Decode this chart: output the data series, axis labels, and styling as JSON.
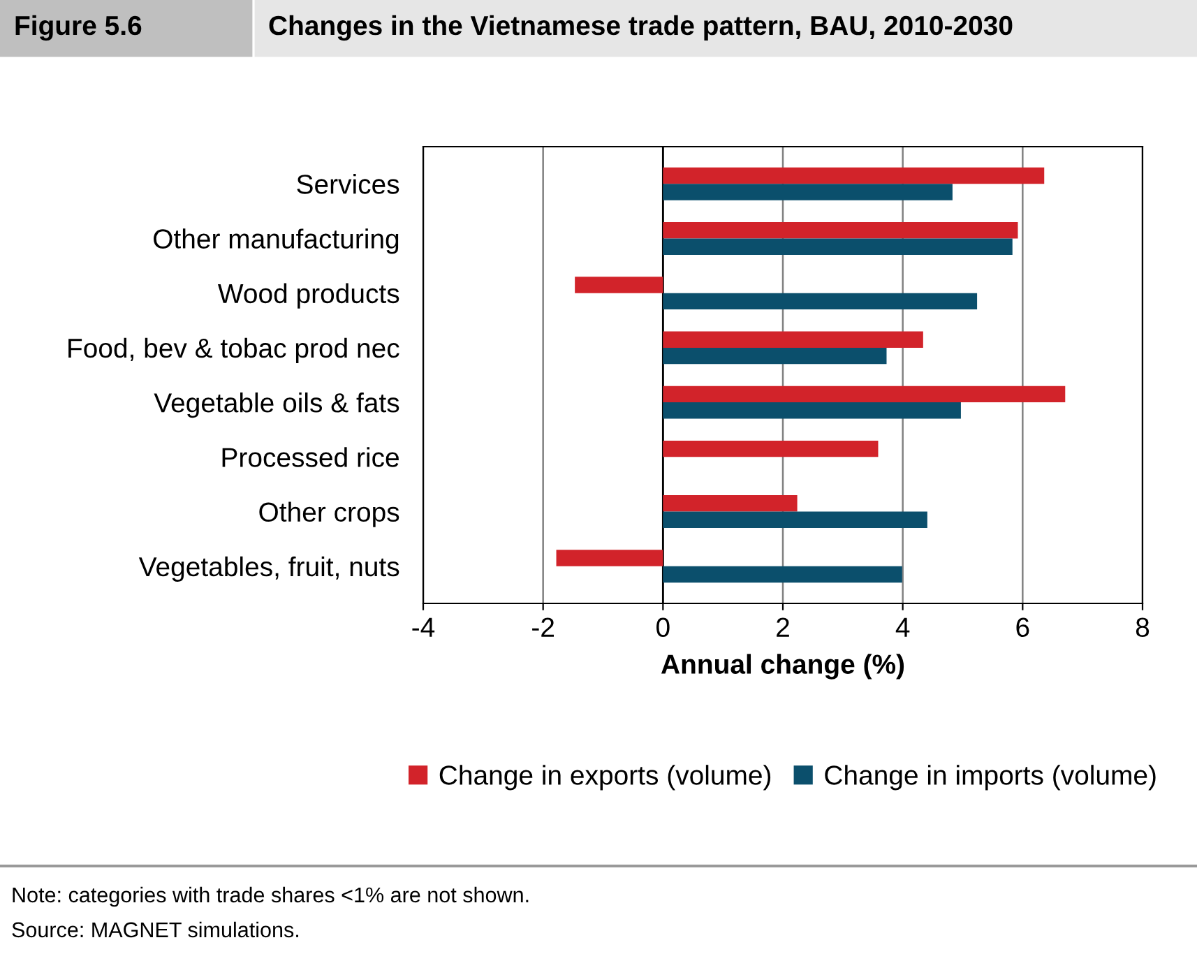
{
  "chart_data": {
    "type": "bar",
    "orientation": "horizontal",
    "title": "Changes in the Vietnamese trade pattern, BAU, 2010-2030",
    "subtitle": "Figure 5.6",
    "xlabel": "Annual change (%)",
    "categories": [
      "Services",
      "Other manufacturing",
      "Wood products",
      "Food, bev & tobac prod nec",
      "Vegetable oils & fats",
      "Processed rice",
      "Other crops",
      "Vegetables, fruit, nuts"
    ],
    "series": [
      {
        "name": "Change in exports (volume)",
        "color": "#d2232a",
        "values": [
          6.36,
          5.92,
          -1.47,
          4.34,
          6.71,
          3.59,
          2.24,
          -1.78
        ]
      },
      {
        "name": "Change in imports (volume)",
        "color": "#0b4f6c",
        "values": [
          4.83,
          5.83,
          5.24,
          3.73,
          4.97,
          null,
          4.41,
          3.99
        ]
      }
    ],
    "xlim": [
      -4,
      8
    ],
    "xticks": [
      -4,
      -2,
      0,
      2,
      4,
      6,
      8
    ],
    "grid": "x",
    "legend": "bottom",
    "annotations": [
      "Note: categories with trade shares <1% are not shown.",
      "Source: MAGNET simulations."
    ]
  }
}
